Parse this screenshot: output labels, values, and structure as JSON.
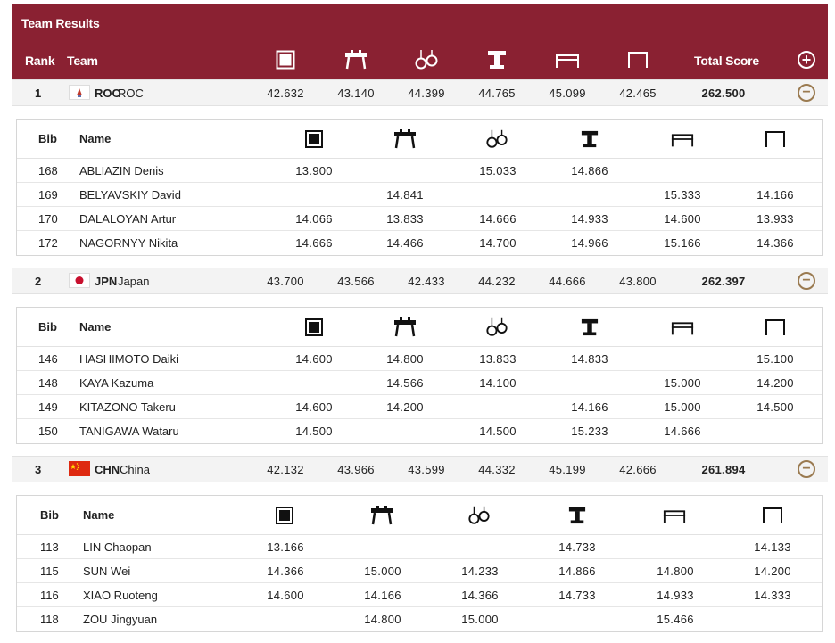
{
  "header": {
    "title": "Team Results",
    "col_rank": "Rank",
    "col_team": "Team",
    "col_total": "Total Score",
    "apparatus_icons": [
      "floor-icon",
      "pommel-horse-icon",
      "rings-icon",
      "vault-icon",
      "parallel-bars-icon",
      "horizontal-bar-icon"
    ],
    "expand_all_icon": "plus-circle-icon"
  },
  "athlete_headers": {
    "bib": "Bib",
    "name": "Name"
  },
  "colors": {
    "header_bg": "#8a2132",
    "accent_gold": "#9a7a50"
  },
  "teams": [
    {
      "rank": "1",
      "code": "ROC",
      "name": "ROC",
      "flag_icon": "roc-flag-icon",
      "scores": [
        "42.632",
        "43.140",
        "44.399",
        "44.765",
        "45.099",
        "42.465"
      ],
      "total": "262.500",
      "athletes": [
        {
          "bib": "168",
          "name": "ABLIAZIN Denis",
          "scores": [
            "13.900",
            "",
            "15.033",
            "14.866",
            "",
            ""
          ]
        },
        {
          "bib": "169",
          "name": "BELYAVSKIY David",
          "scores": [
            "",
            "14.841",
            "",
            "",
            "15.333",
            "14.166"
          ]
        },
        {
          "bib": "170",
          "name": "DALALOYAN Artur",
          "scores": [
            "14.066",
            "13.833",
            "14.666",
            "14.933",
            "14.600",
            "13.933"
          ]
        },
        {
          "bib": "172",
          "name": "NAGORNYY Nikita",
          "scores": [
            "14.666",
            "14.466",
            "14.700",
            "14.966",
            "15.166",
            "14.366"
          ]
        }
      ]
    },
    {
      "rank": "2",
      "code": "JPN",
      "name": "Japan",
      "flag_icon": "japan-flag-icon",
      "scores": [
        "43.700",
        "43.566",
        "42.433",
        "44.232",
        "44.666",
        "43.800"
      ],
      "total": "262.397",
      "athletes": [
        {
          "bib": "146",
          "name": "HASHIMOTO Daiki",
          "scores": [
            "14.600",
            "14.800",
            "13.833",
            "14.833",
            "",
            "15.100"
          ]
        },
        {
          "bib": "148",
          "name": "KAYA Kazuma",
          "scores": [
            "",
            "14.566",
            "14.100",
            "",
            "15.000",
            "14.200"
          ]
        },
        {
          "bib": "149",
          "name": "KITAZONO Takeru",
          "scores": [
            "14.600",
            "14.200",
            "",
            "14.166",
            "15.000",
            "14.500"
          ]
        },
        {
          "bib": "150",
          "name": "TANIGAWA Wataru",
          "scores": [
            "14.500",
            "",
            "14.500",
            "15.233",
            "14.666",
            ""
          ]
        }
      ]
    },
    {
      "rank": "3",
      "code": "CHN",
      "name": "China",
      "flag_icon": "china-flag-icon",
      "scores": [
        "42.132",
        "43.966",
        "43.599",
        "44.332",
        "45.199",
        "42.666"
      ],
      "total": "261.894",
      "athletes": [
        {
          "bib": "113",
          "name": "LIN Chaopan",
          "scores": [
            "13.166",
            "",
            "",
            "14.733",
            "",
            "14.133"
          ]
        },
        {
          "bib": "115",
          "name": "SUN Wei",
          "scores": [
            "14.366",
            "15.000",
            "14.233",
            "14.866",
            "14.800",
            "14.200"
          ]
        },
        {
          "bib": "116",
          "name": "XIAO Ruoteng",
          "scores": [
            "14.600",
            "14.166",
            "14.366",
            "14.733",
            "14.933",
            "14.333"
          ]
        },
        {
          "bib": "118",
          "name": "ZOU Jingyuan",
          "scores": [
            "",
            "14.800",
            "15.000",
            "",
            "15.466",
            ""
          ]
        }
      ]
    }
  ]
}
